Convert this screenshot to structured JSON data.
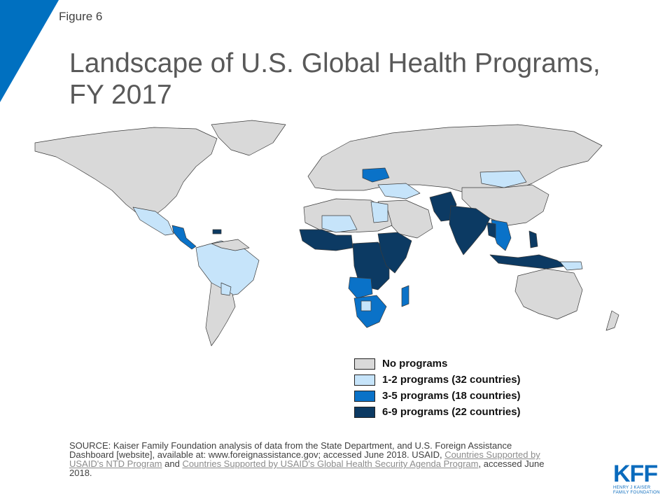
{
  "figure_label": "Figure 6",
  "title_line1": "Landscape of U.S. Global Health Programs,",
  "title_line2": "FY 2017",
  "colors": {
    "accent": "#0070c0",
    "none": "#d9d9d9",
    "low": "#c6e4fa",
    "mid": "#0a72c8",
    "high": "#0c3a63",
    "ocean": "#ffffff"
  },
  "legend": [
    {
      "label": "No programs",
      "color": "#d9d9d9"
    },
    {
      "label": "1-2 programs (32 countries)",
      "color": "#c6e4fa"
    },
    {
      "label": "3-5 programs (18 countries)",
      "color": "#0a72c8"
    },
    {
      "label": "6-9 programs (22 countries)",
      "color": "#0c3a63"
    }
  ],
  "source": {
    "text1": "SOURCE: Kaiser Family Foundation analysis of data from the State Department, and U.S. Foreign Assistance Dashboard [website], available at: www.foreignassistance.gov; accessed June 2018. USAID, ",
    "link1": "Countries Supported by USAID's NTD Program",
    "text2": " and ",
    "link2": "Countries Supported by USAID's Global Health Security Agenda Program",
    "text3": ", accessed June 2018."
  },
  "logo": {
    "mark": "KFF",
    "line1": "HENRY J KAISER",
    "line2": "FAMILY FOUNDATION"
  }
}
